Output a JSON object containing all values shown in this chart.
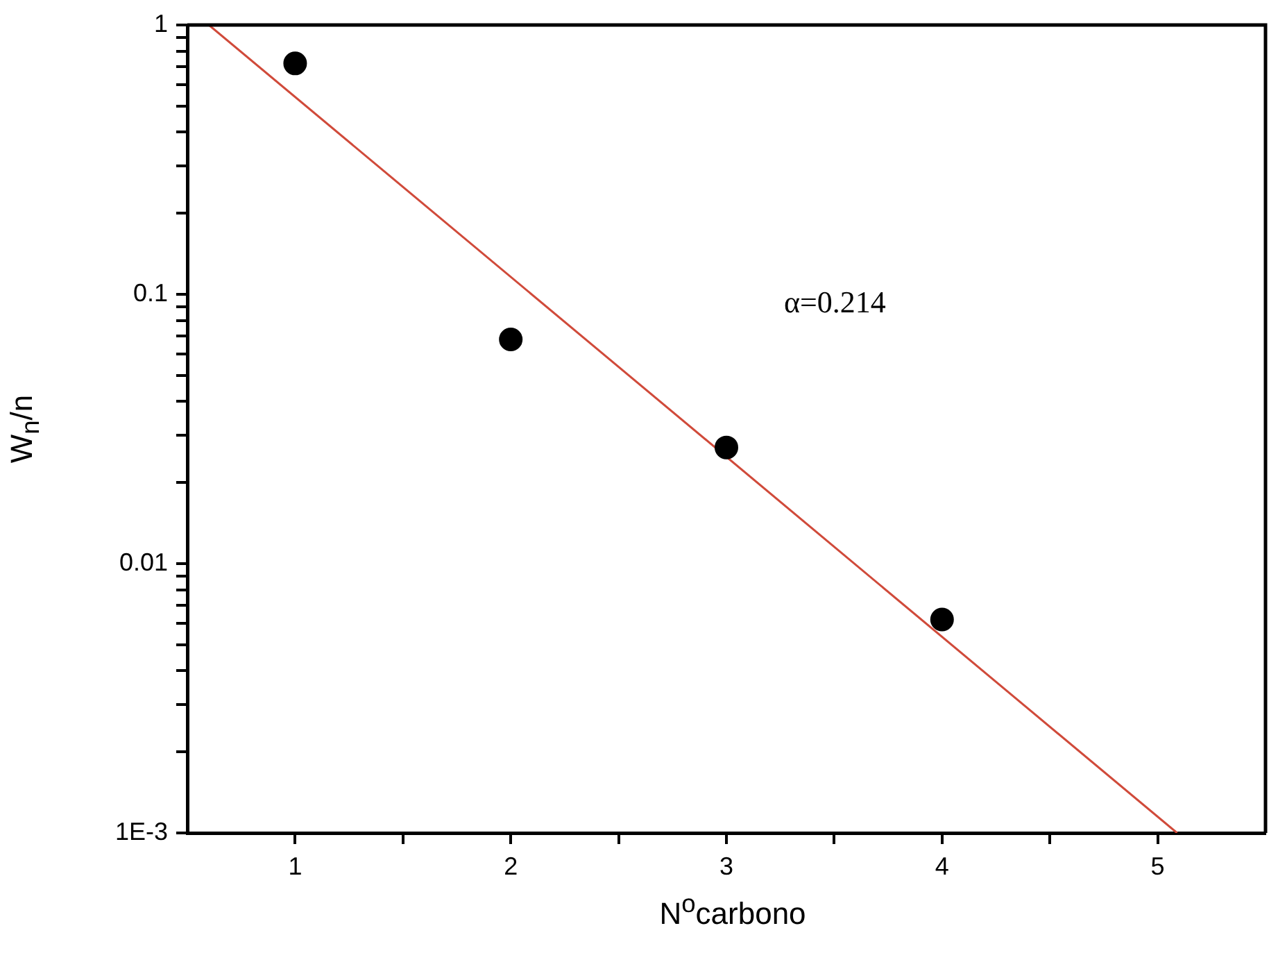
{
  "chart_data": {
    "type": "scatter",
    "xlabel": "N$^{o}$carbono",
    "ylabel": "W$_{n}$/n",
    "annotations": [
      "α=0.214"
    ],
    "log": "y",
    "grid": false,
    "legend": false,
    "marker": "circle",
    "xlim": [
      0.5,
      5.5
    ],
    "ylim": [
      0.001,
      1
    ],
    "xticks": [
      1,
      {
        "value": 1.5,
        "label": null
      },
      2,
      {
        "value": 2.5,
        "label": null
      },
      3,
      {
        "value": 3.5,
        "label": null
      },
      4,
      {
        "value": 4.5,
        "label": null
      },
      5
    ],
    "yticks": [
      {
        "value": 0.001,
        "label": "1E-3"
      },
      {
        "value": 0.002,
        "label": null
      },
      {
        "value": 0.003,
        "label": null
      },
      {
        "value": 0.004,
        "label": null
      },
      {
        "value": 0.005,
        "label": null
      },
      {
        "value": 0.006,
        "label": null
      },
      {
        "value": 0.007,
        "label": null
      },
      {
        "value": 0.008,
        "label": null
      },
      {
        "value": 0.009,
        "label": null
      },
      0.01,
      {
        "value": 0.02,
        "label": null
      },
      {
        "value": 0.03,
        "label": null
      },
      {
        "value": 0.04,
        "label": null
      },
      {
        "value": 0.05,
        "label": null
      },
      {
        "value": 0.06,
        "label": null
      },
      {
        "value": 0.07,
        "label": null
      },
      {
        "value": 0.08,
        "label": null
      },
      {
        "value": 0.09,
        "label": null
      },
      0.1,
      {
        "value": 0.2,
        "label": null
      },
      {
        "value": 0.3,
        "label": null
      },
      {
        "value": 0.4,
        "label": null
      },
      {
        "value": 0.5,
        "label": null
      },
      {
        "value": 0.6,
        "label": null
      },
      {
        "value": 0.7,
        "label": null
      },
      {
        "value": 0.8,
        "label": null
      },
      {
        "value": 0.9,
        "label": null
      },
      1
    ],
    "series": [
      {
        "type": "scatter",
        "color": "#000000",
        "x": [
          1,
          2,
          3,
          4
        ],
        "values": [
          0.72,
          0.068,
          0.027,
          0.0062
        ]
      },
      {
        "type": "line",
        "color": "#d04a3a",
        "marker": "none",
        "line_style": "solid",
        "x": [
          0.6,
          5.09
        ],
        "values": [
          1,
          0.001
        ]
      }
    ]
  }
}
